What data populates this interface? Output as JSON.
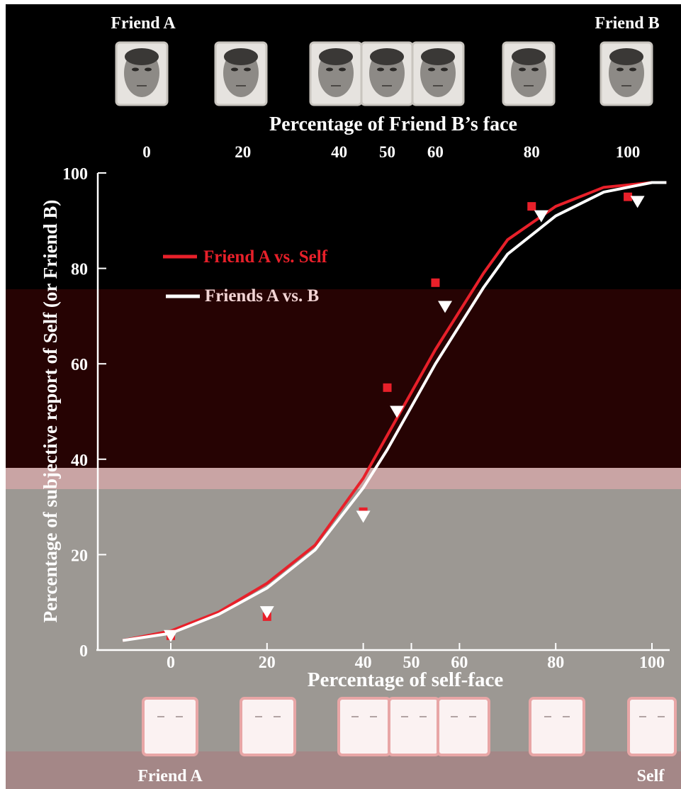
{
  "chart_data": {
    "type": "line",
    "title": "",
    "top_label_left": "Friend A",
    "top_label_right": "Friend B",
    "bottom_label_left": "Friend A",
    "bottom_label_right": "Self",
    "top_xlabel": "Percentage of  Friend B’s face",
    "xlabel": "Percentage of self-face",
    "ylabel": "Percentage of subjective report of Self (or Friend B)",
    "top_ticks": [
      0,
      20,
      40,
      50,
      60,
      80,
      100
    ],
    "xticks": [
      0,
      20,
      40,
      50,
      60,
      80,
      100
    ],
    "yticks": [
      0,
      20,
      40,
      60,
      80,
      100
    ],
    "xlim": [
      -10,
      103
    ],
    "ylim": [
      0,
      100
    ],
    "grid": false,
    "legend_position": "upper-left",
    "colors": {
      "friendA_vs_self": "#e8202a",
      "friends_A_vs_B": "#ffffff"
    },
    "series": [
      {
        "name": "Friend A vs. Self",
        "marker": "square",
        "x": [
          0,
          20,
          40,
          45,
          55,
          75,
          95
        ],
        "y": [
          3,
          7,
          29,
          55,
          77,
          93,
          95
        ]
      },
      {
        "name": "Friends A vs. B",
        "marker": "triangle-down",
        "x": [
          0,
          20,
          40,
          47,
          57,
          77,
          97
        ],
        "y": [
          3,
          8,
          28,
          50,
          72,
          91,
          94
        ]
      }
    ],
    "fit_curves": [
      {
        "series": "Friend A vs. Self",
        "x": [
          -10,
          0,
          10,
          20,
          30,
          40,
          45,
          50,
          55,
          60,
          65,
          70,
          80,
          90,
          100,
          103
        ],
        "y": [
          2,
          4,
          8,
          14,
          22,
          36,
          45,
          54,
          63,
          71,
          79,
          86,
          93,
          97,
          98,
          98
        ]
      },
      {
        "series": "Friends A vs. B",
        "x": [
          -10,
          0,
          10,
          20,
          30,
          40,
          45,
          50,
          55,
          60,
          65,
          70,
          80,
          90,
          100,
          103
        ],
        "y": [
          2,
          3.5,
          7.5,
          13,
          21,
          34,
          42,
          51,
          60,
          68,
          76,
          83,
          91,
          96,
          98,
          98
        ]
      }
    ],
    "face_stimuli_top_pct": [
      0,
      20,
      40,
      50,
      60,
      80,
      100
    ],
    "face_stimuli_bottom_pct": [
      0,
      20,
      40,
      50,
      60,
      80,
      100
    ]
  }
}
